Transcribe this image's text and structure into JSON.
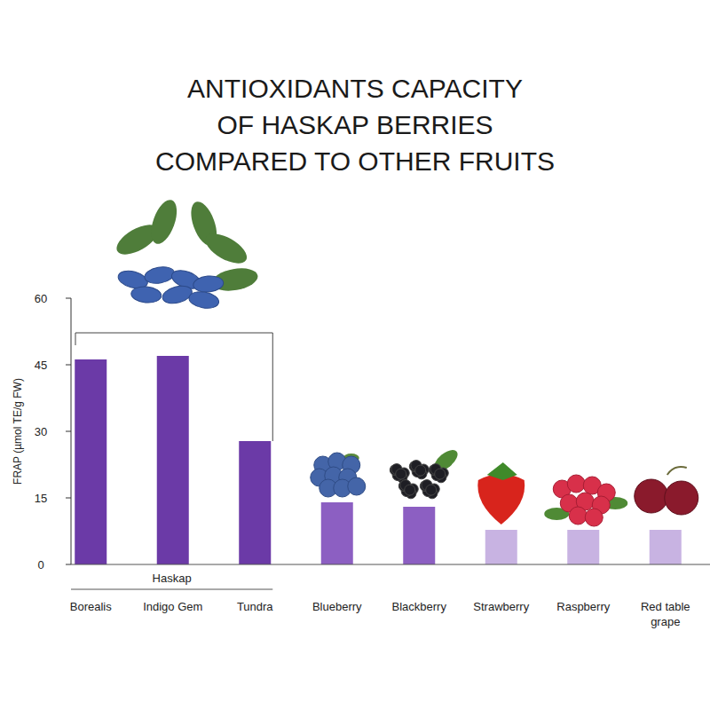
{
  "chart_data": {
    "type": "bar",
    "title": "ANTIOXIDANTS CAPACITY\nOF HASKAP BERRIES\nCOMPARED TO OTHER FRUITS",
    "ylabel": "FRAP (µmol TE/g FW)",
    "categories": [
      "Borealis",
      "Indigo Gem",
      "Tundra",
      "Blueberry",
      "Blackberry",
      "Strawberry",
      "Raspberry",
      "Red table grape"
    ],
    "values": [
      46.2,
      47.0,
      27.8,
      14.0,
      13.0,
      7.8,
      7.8,
      7.8
    ],
    "colors": [
      "#6b3aa7",
      "#6b3aa7",
      "#6b3aa7",
      "#8c5fc2",
      "#8c5fc2",
      "#c8b3e2",
      "#c8b3e2",
      "#c8b3e2"
    ],
    "ylim": [
      0,
      60
    ],
    "yticks": [
      0,
      15,
      30,
      45,
      60
    ],
    "grid": false,
    "annotations": [
      {
        "text": "Haskap",
        "from": "Borealis",
        "to": "Tundra"
      }
    ]
  }
}
